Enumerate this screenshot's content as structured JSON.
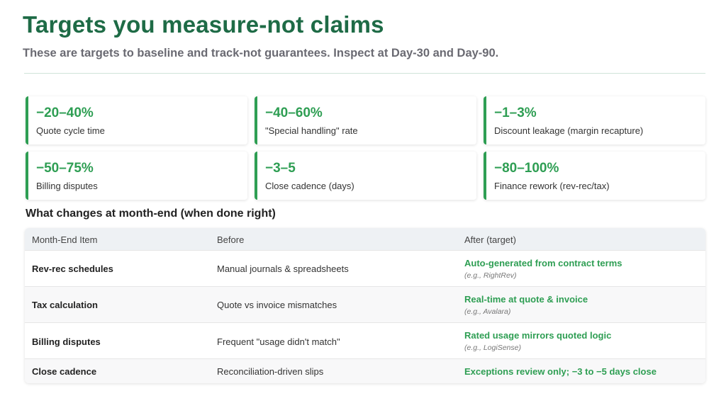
{
  "title": "Targets you measure-not claims",
  "subtitle": "These are targets to baseline and track-not guarantees. Inspect at Day-30 and Day-90.",
  "cards": [
    {
      "value": "−20–40%",
      "label": "Quote cycle time"
    },
    {
      "value": "−40–60%",
      "label": "\"Special handling\" rate"
    },
    {
      "value": "−1–3%",
      "label": "Discount leakage (margin recapture)"
    },
    {
      "value": "−50–75%",
      "label": "Billing disputes"
    },
    {
      "value": "−3–5",
      "label": "Close cadence (days)"
    },
    {
      "value": "−80–100%",
      "label": "Finance rework (rev-rec/tax)"
    }
  ],
  "section_title": "What changes at month-end (when done right)",
  "table": {
    "headers": [
      "Month-End Item",
      "Before",
      "After (target)"
    ],
    "rows": [
      {
        "item": "Rev-rec schedules",
        "before": "Manual journals & spreadsheets",
        "after": "Auto-generated from contract terms",
        "note": "(e.g., RightRev)"
      },
      {
        "item": "Tax calculation",
        "before": "Quote vs invoice mismatches",
        "after": "Real-time at quote & invoice",
        "note": "(e.g., Avalara)"
      },
      {
        "item": "Billing disputes",
        "before": "Frequent \"usage didn't match\"",
        "after": "Rated usage mirrors quoted logic",
        "note": "(e.g., LogiSense)"
      },
      {
        "item": "Close cadence",
        "before": "Reconciliation-driven slips",
        "after": "Exceptions review only; −3 to −5 days close",
        "note": ""
      }
    ]
  },
  "colors": {
    "title": "#1e6b46",
    "accent": "#2e9e53",
    "subtitle": "#6a6a72"
  }
}
